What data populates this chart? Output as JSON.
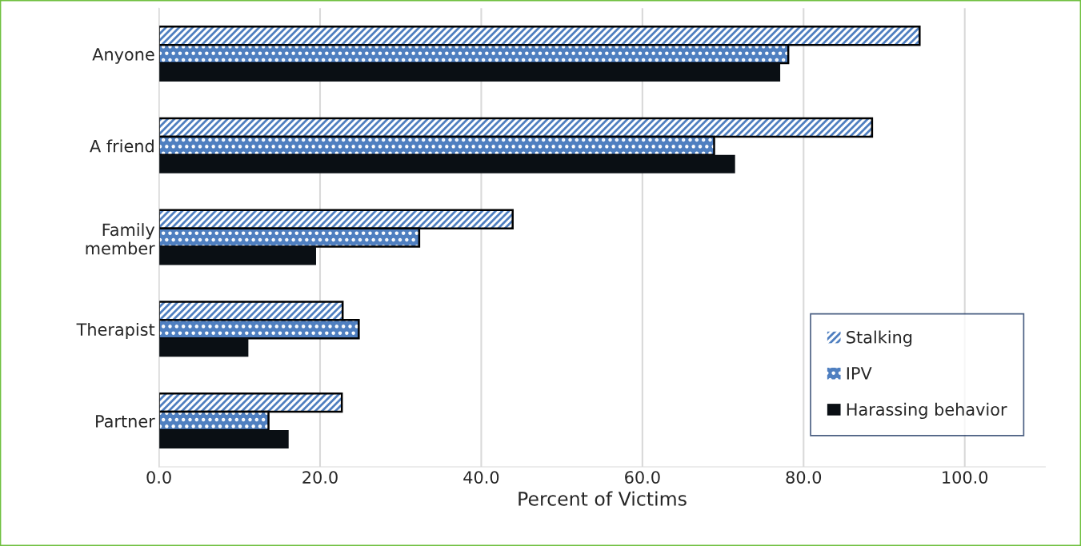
{
  "chart_data": {
    "type": "bar",
    "orientation": "horizontal",
    "xlabel": "Percent of Victims",
    "categories": [
      "Anyone",
      "A friend",
      "Family\nmember",
      "Therapist",
      "Partner"
    ],
    "series": [
      {
        "name": "Stalking",
        "color": "#4f7fc0",
        "values": [
          94.4,
          88.5,
          43.9,
          22.8,
          22.7
        ]
      },
      {
        "name": "IPV",
        "color": "#4f7fc0",
        "values": [
          78.1,
          68.9,
          32.3,
          24.8,
          13.6
        ]
      },
      {
        "name": "Harassing behavior",
        "color": "#0a0f14",
        "values": [
          77.1,
          71.5,
          19.5,
          11.1,
          16.1
        ]
      }
    ],
    "xlim": [
      0,
      110
    ],
    "xticks": [
      {
        "value": 0,
        "label": "0.0"
      },
      {
        "value": 20,
        "label": "20.0"
      },
      {
        "value": 40,
        "label": "40.0"
      },
      {
        "value": 60,
        "label": "60.0"
      },
      {
        "value": 80,
        "label": "80.0"
      },
      {
        "value": 100,
        "label": "100.0"
      }
    ],
    "grid": "x",
    "legend": "bottom right"
  }
}
